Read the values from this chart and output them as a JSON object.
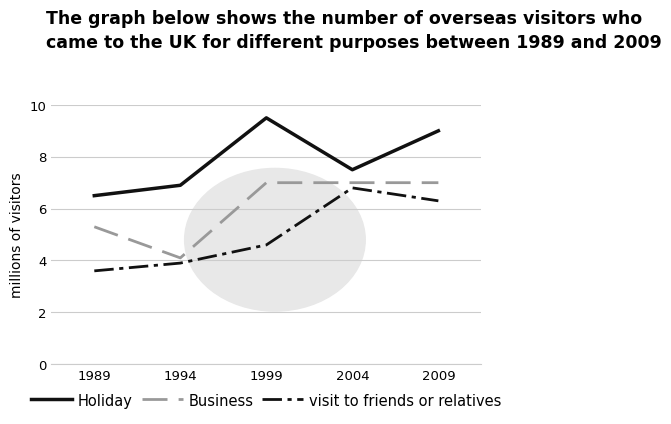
{
  "title_line1": "The graph below shows the number of overseas visitors who",
  "title_line2": "came to the UK for different purposes between 1989 and 2009",
  "years": [
    1989,
    1994,
    1999,
    2004,
    2009
  ],
  "holiday": [
    6.5,
    6.9,
    9.5,
    7.5,
    9.0
  ],
  "business": [
    5.3,
    4.1,
    7.0,
    7.0,
    7.0
  ],
  "friends": [
    3.6,
    3.9,
    4.6,
    6.8,
    6.3
  ],
  "ylabel": "millions of visitors",
  "ylim": [
    0,
    10
  ],
  "yticks": [
    0,
    2,
    4,
    6,
    8,
    10
  ],
  "xticks": [
    1989,
    1994,
    1999,
    2004,
    2009
  ],
  "holiday_color": "#111111",
  "business_color": "#999999",
  "friends_color": "#111111",
  "grid_color": "#cccccc",
  "bg_color": "#ffffff",
  "watermark_color": "#e8e8e8",
  "title_fontsize": 12.5,
  "legend_fontsize": 10.5,
  "tick_fontsize": 9.5
}
